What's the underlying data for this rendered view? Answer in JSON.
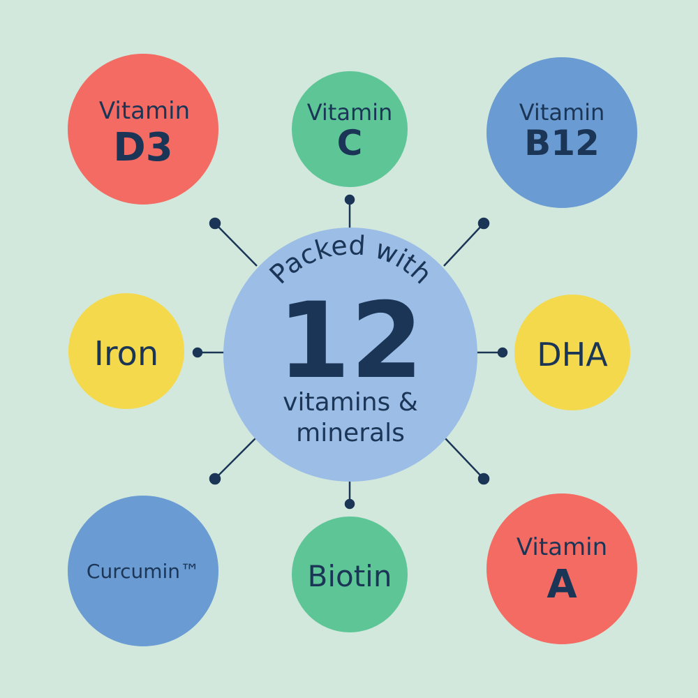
{
  "colors": {
    "background": "#d2e8dc",
    "red": "#f46b63",
    "green": "#5dc596",
    "blue": "#6a9bd2",
    "yellow": "#f3d94b",
    "center": "#9bbde6",
    "ink": "#1b3556"
  },
  "center": {
    "arc_text": "Packed with",
    "number": "12",
    "line1": "vitamins &",
    "line2": "minerals"
  },
  "nutrients": [
    {
      "line1": "Vitamin",
      "line2": "D3"
    },
    {
      "line1": "Vitamin",
      "line2": "C"
    },
    {
      "line1": "Vitamin",
      "line2": "B12"
    },
    {
      "line1": "Iron"
    },
    {
      "line1": "DHA"
    },
    {
      "line1": "Curcumin™"
    },
    {
      "line1": "Biotin"
    },
    {
      "line1": "Vitamin",
      "line2": "A"
    }
  ]
}
